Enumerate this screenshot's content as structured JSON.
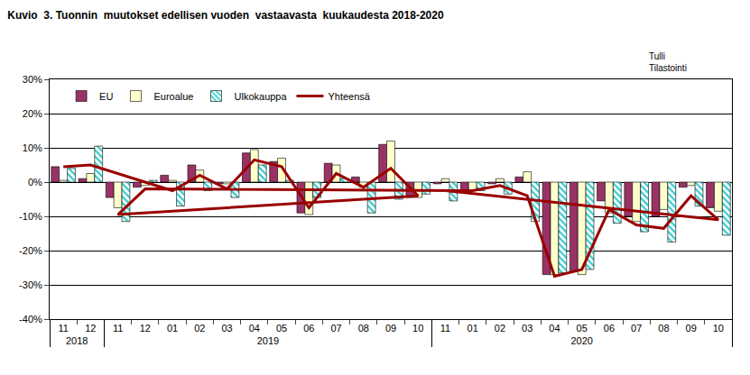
{
  "chart_data": {
    "type": "bar",
    "title": "Kuvio  3. Tuonnin  muutokset edellisen vuoden  vastaavasta  kuukaudesta 2018-2020",
    "source": [
      "Tulli",
      "Tilastointi"
    ],
    "categories": [
      "11",
      "12",
      "01",
      "02",
      "03",
      "04",
      "05",
      "06",
      "07",
      "08",
      "09",
      "10",
      "11",
      "12",
      "01",
      "02",
      "03",
      "04",
      "05",
      "06",
      "07",
      "08",
      "09",
      "10",
      "11"
    ],
    "years": [
      "2018",
      "2018",
      "2019",
      "2019",
      "2019",
      "2019",
      "2019",
      "2019",
      "2019",
      "2019",
      "2019",
      "2019",
      "2019",
      "2019",
      "2020",
      "2020",
      "2020",
      "2020",
      "2020",
      "2020",
      "2020",
      "2020",
      "2020",
      "2020",
      "2020"
    ],
    "series": [
      {
        "name": "EU",
        "type": "bar",
        "color": "#993366",
        "values": [
          4.5,
          1.0,
          2.0,
          5.0,
          -0.5,
          8.5,
          6.0,
          -9.0,
          5.5,
          1.5,
          11.0,
          -4.5,
          -4.5,
          -1.5,
          -3.0,
          -0.5,
          1.5,
          -27.0,
          -26.0,
          -5.5,
          -10.0,
          -10.0,
          -1.5,
          -7.5,
          -0.5
        ]
      },
      {
        "name": "Euroalue",
        "type": "bar",
        "color": "#FFFFCC",
        "values": [
          0.5,
          2.5,
          0.5,
          3.5,
          -0.5,
          9.5,
          7.0,
          -9.5,
          5.0,
          -1.5,
          12.0,
          -4.5,
          -7.5,
          -1.0,
          -2.5,
          1.0,
          3.0,
          -27.0,
          -27.0,
          -9.0,
          -11.5,
          -8.0,
          -1.0,
          -8.5,
          1.0
        ]
      },
      {
        "name": "Ulkokauppa",
        "type": "bar",
        "color": "#33CCCC",
        "marker": "hatched",
        "values": [
          4.0,
          10.5,
          -7.0,
          -2.5,
          -4.5,
          5.0,
          0.5,
          -4.5,
          1.0,
          -9.0,
          -5.0,
          -3.5,
          -11.5,
          0.5,
          -2.5,
          -3.5,
          -11.5,
          -26.5,
          -25.5,
          -12.0,
          -14.5,
          -17.5,
          -7.0,
          -15.5,
          -5.5
        ]
      },
      {
        "name": "Yhteensä",
        "type": "line",
        "color": "#990000",
        "values": [
          4.5,
          5.0,
          -2.5,
          2.0,
          -2.0,
          6.5,
          4.5,
          -7.5,
          2.5,
          -1.5,
          4.0,
          -4.0,
          -9.5,
          -2.0,
          -2.5,
          -1.0,
          -4.0,
          -27.5,
          -25.5,
          -8.0,
          -12.5,
          -13.5,
          -4.0,
          -11.0,
          -2.5
        ]
      }
    ],
    "ylim": [
      -40,
      30
    ],
    "yticks": [
      {
        "value": -40,
        "label": "-40%"
      },
      {
        "value": -30,
        "label": "-30%"
      },
      {
        "value": -20,
        "label": "-20%"
      },
      {
        "value": -10,
        "label": "-10%"
      },
      {
        "value": 0,
        "label": "0%"
      },
      {
        "value": 10,
        "label": "10%"
      },
      {
        "value": 20,
        "label": "20%"
      },
      {
        "value": 30,
        "label": "30%"
      }
    ],
    "grid": true,
    "legend": "top-left"
  }
}
